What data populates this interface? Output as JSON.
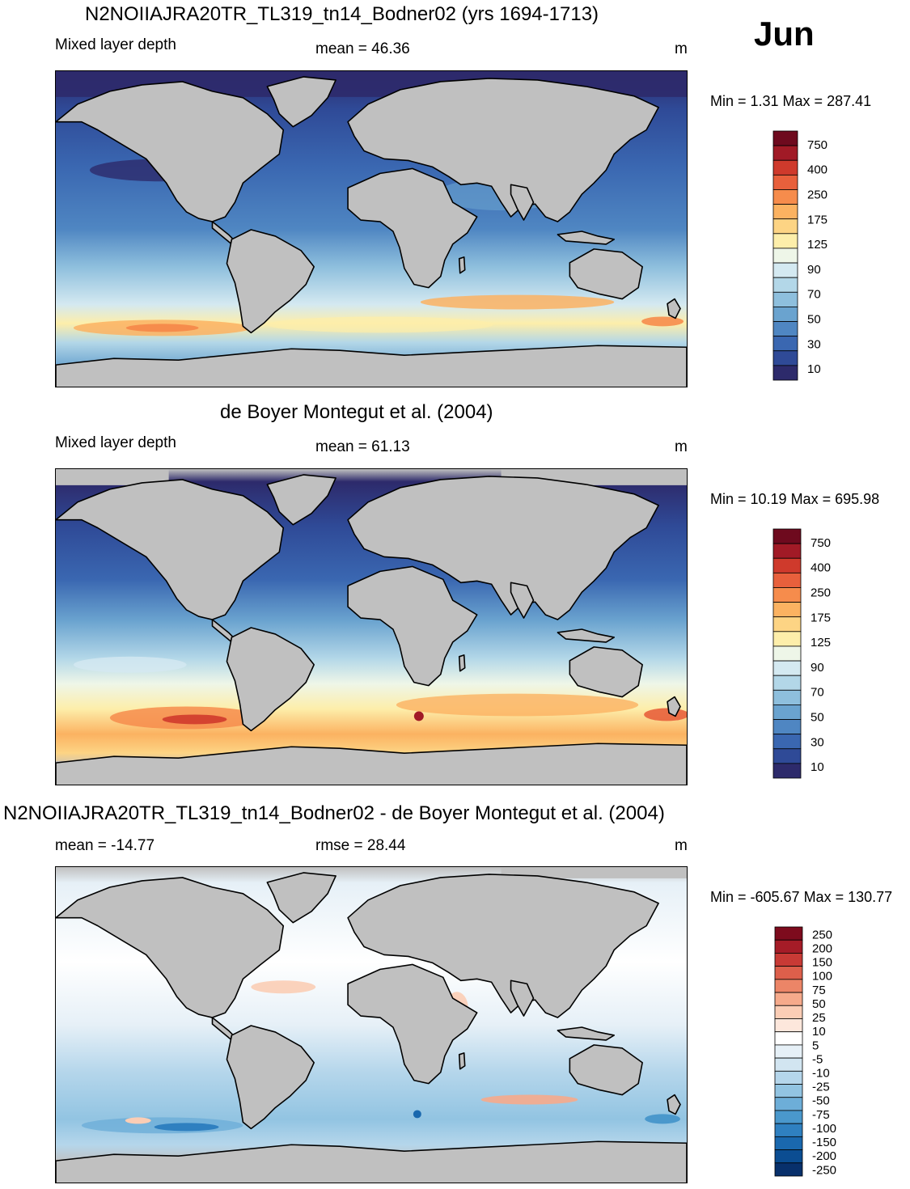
{
  "month": "Jun",
  "panels": [
    {
      "title": "N2NOIIAJRA20TR_TL319_tn14_Bodner02 (yrs 1694-1713)",
      "left_label": "Mixed layer depth",
      "center_label": "mean =  46.36",
      "units": "m",
      "minmax": "Min =   1.31 Max = 287.41",
      "colorbar": {
        "colors": [
          "#2d2a6b",
          "#2f4a97",
          "#3a67b1",
          "#4f86c2",
          "#6aa3cf",
          "#8ebfdd",
          "#b3d7e8",
          "#d4e9f1",
          "#eef6e8",
          "#fdeeaa",
          "#fdd484",
          "#fbb261",
          "#f68c4c",
          "#e8603c",
          "#cf3a2c",
          "#a11a26",
          "#6e0a1e"
        ],
        "labels": [
          "750",
          "400",
          "250",
          "175",
          "125",
          "90",
          "70",
          "50",
          "30",
          "10"
        ]
      }
    },
    {
      "title": "de Boyer Montegut et al. (2004)",
      "left_label": "Mixed layer depth",
      "center_label": "mean =  61.13",
      "units": "m",
      "minmax": "Min =  10.19 Max = 695.98",
      "colorbar": {
        "colors": [
          "#2d2a6b",
          "#2f4a97",
          "#3a67b1",
          "#4f86c2",
          "#6aa3cf",
          "#8ebfdd",
          "#b3d7e8",
          "#d4e9f1",
          "#eef6e8",
          "#fdeeaa",
          "#fdd484",
          "#fbb261",
          "#f68c4c",
          "#e8603c",
          "#cf3a2c",
          "#a11a26",
          "#6e0a1e"
        ],
        "labels": [
          "750",
          "400",
          "250",
          "175",
          "125",
          "90",
          "70",
          "50",
          "30",
          "10"
        ]
      }
    },
    {
      "title": "N2NOIIAJRA20TR_TL319_tn14_Bodner02 - de Boyer Montegut et al. (2004)",
      "left_label": "mean = -14.77",
      "center_label": "rmse =  28.44",
      "units": "m",
      "minmax": "Min = -605.67 Max = 130.77",
      "colorbar": {
        "colors": [
          "#08306b",
          "#0b4d92",
          "#1a68ae",
          "#2f80c0",
          "#4a98cc",
          "#6daed8",
          "#92c4e2",
          "#b5d6eb",
          "#d2e5f1",
          "#e6f0f7",
          "#ffffff",
          "#fde7dc",
          "#fbcdb5",
          "#f6aa8b",
          "#ec8567",
          "#dd5f4b",
          "#c83a35",
          "#a51c27",
          "#7d0b1d"
        ],
        "labels": [
          "250",
          "200",
          "150",
          "100",
          "75",
          "50",
          "25",
          "10",
          "5",
          "-5",
          "-10",
          "-25",
          "-50",
          "-75",
          "-100",
          "-150",
          "-200",
          "-250"
        ]
      }
    }
  ]
}
